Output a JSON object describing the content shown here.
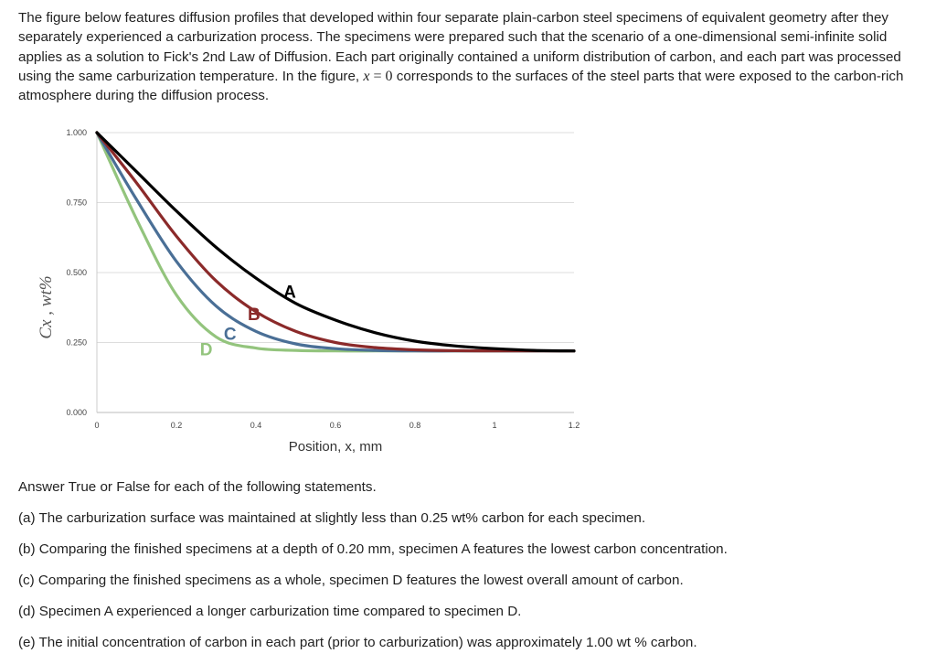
{
  "intro": {
    "p1": "The figure below features diffusion profiles that developed within four separate plain-carbon steel specimens of equivalent geometry after they separately experienced a carburization process. The specimens were prepared such that the scenario of a one-dimensional semi-infinite solid applies as a solution to Fick's 2nd Law of Diffusion. Each part originally contained a uniform distribution of carbon, and each part was processed using the same carburization temperature. In the figure,",
    "math_x": "x",
    "math_eq": " = ",
    "math_zero": "0",
    "p2": "corresponds to the surfaces of the steel parts that were exposed to the carbon-rich atmosphere during the diffusion process."
  },
  "chart_data": {
    "type": "line",
    "xlabel": "Position, x, mm",
    "ylabel": "Cx , wt%",
    "xlim": [
      0,
      1.2
    ],
    "ylim": [
      0,
      1.0
    ],
    "x_ticks": [
      "0",
      "0.2",
      "0.4",
      "0.6",
      "0.8",
      "1",
      "1.2"
    ],
    "y_ticks": [
      "0.000",
      "0.250",
      "0.500",
      "0.750",
      "1.000"
    ],
    "grid": "horizontal",
    "series": [
      {
        "name": "A",
        "color": "#000000",
        "x": [
          0,
          0.1,
          0.2,
          0.3,
          0.4,
          0.5,
          0.6,
          0.7,
          0.8,
          0.9,
          1.0,
          1.1,
          1.2
        ],
        "y": [
          1.0,
          0.86,
          0.72,
          0.59,
          0.48,
          0.39,
          0.33,
          0.285,
          0.255,
          0.238,
          0.228,
          0.222,
          0.22
        ]
      },
      {
        "name": "B",
        "color": "#8b2a2a",
        "x": [
          0,
          0.1,
          0.2,
          0.3,
          0.4,
          0.5,
          0.6,
          0.7,
          0.8,
          0.9,
          1.0,
          1.1,
          1.2
        ],
        "y": [
          1.0,
          0.82,
          0.63,
          0.47,
          0.36,
          0.29,
          0.25,
          0.232,
          0.224,
          0.221,
          0.22,
          0.22,
          0.22
        ]
      },
      {
        "name": "C",
        "color": "#4a6f96",
        "x": [
          0,
          0.1,
          0.2,
          0.3,
          0.4,
          0.5,
          0.6,
          0.7,
          0.8,
          0.9,
          1.0,
          1.1,
          1.2
        ],
        "y": [
          1.0,
          0.76,
          0.54,
          0.38,
          0.29,
          0.245,
          0.228,
          0.222,
          0.22,
          0.22,
          0.22,
          0.22,
          0.22
        ]
      },
      {
        "name": "D",
        "color": "#93c47d",
        "x": [
          0,
          0.1,
          0.2,
          0.3,
          0.4,
          0.5,
          0.6,
          0.7,
          0.8,
          0.9,
          1.0,
          1.1,
          1.2
        ],
        "y": [
          1.0,
          0.69,
          0.42,
          0.27,
          0.23,
          0.222,
          0.22,
          0.22,
          0.22,
          0.22,
          0.22,
          0.22,
          0.22
        ]
      }
    ]
  },
  "questions": {
    "heading": "Answer True or False for each of the following statements.",
    "items": [
      "(a) The carburization surface was maintained at slightly less than 0.25 wt% carbon for each specimen.",
      "(b) Comparing the finished specimens at a depth of 0.20 mm, specimen A features the lowest carbon concentration.",
      "(c) Comparing the finished specimens as a whole, specimen D features the lowest overall amount of carbon.",
      "(d) Specimen A experienced a longer carburization time compared to specimen D.",
      "(e) The initial concentration of carbon in each part (prior to carburization) was approximately 1.00 wt % carbon."
    ]
  }
}
